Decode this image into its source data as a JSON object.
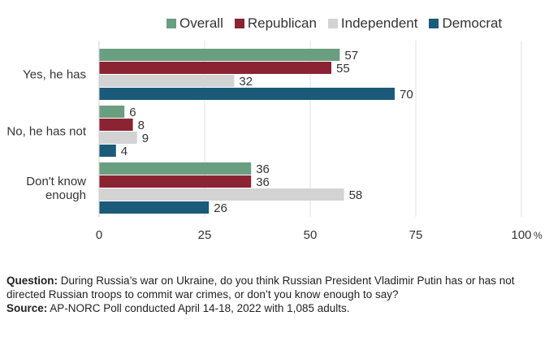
{
  "chart_data": {
    "type": "bar",
    "orientation": "horizontal",
    "categories": [
      "Yes, he has",
      "No, he has not",
      "Don't know enough"
    ],
    "category_lines": [
      [
        "Yes, he has"
      ],
      [
        "No, he has not"
      ],
      [
        "Don't know",
        "enough"
      ]
    ],
    "series": [
      {
        "name": "Overall",
        "color": "#6a9e80",
        "values": [
          57,
          6,
          36
        ]
      },
      {
        "name": "Republican",
        "color": "#8b2332",
        "values": [
          55,
          8,
          36
        ]
      },
      {
        "name": "Independent",
        "color": "#d3d3d3",
        "values": [
          32,
          9,
          58
        ]
      },
      {
        "name": "Democrat",
        "color": "#1b5a78",
        "values": [
          70,
          4,
          26
        ]
      }
    ],
    "x_ticks": [
      0,
      25,
      50,
      75,
      100
    ],
    "x_unit": "%",
    "xlim": [
      0,
      100
    ],
    "grid": "vertical",
    "legend_position": "top"
  },
  "footer": {
    "question_label": "Question:",
    "question_text": "During Russia’s war on Ukraine, do you think Russian President Vladimir Putin has or has not directed Russian troops to commit war crimes, or don’t you know enough to say?",
    "source_label": "Source:",
    "source_text": "AP-NORC Poll conducted April 14-18, 2022 with 1,085 adults."
  }
}
